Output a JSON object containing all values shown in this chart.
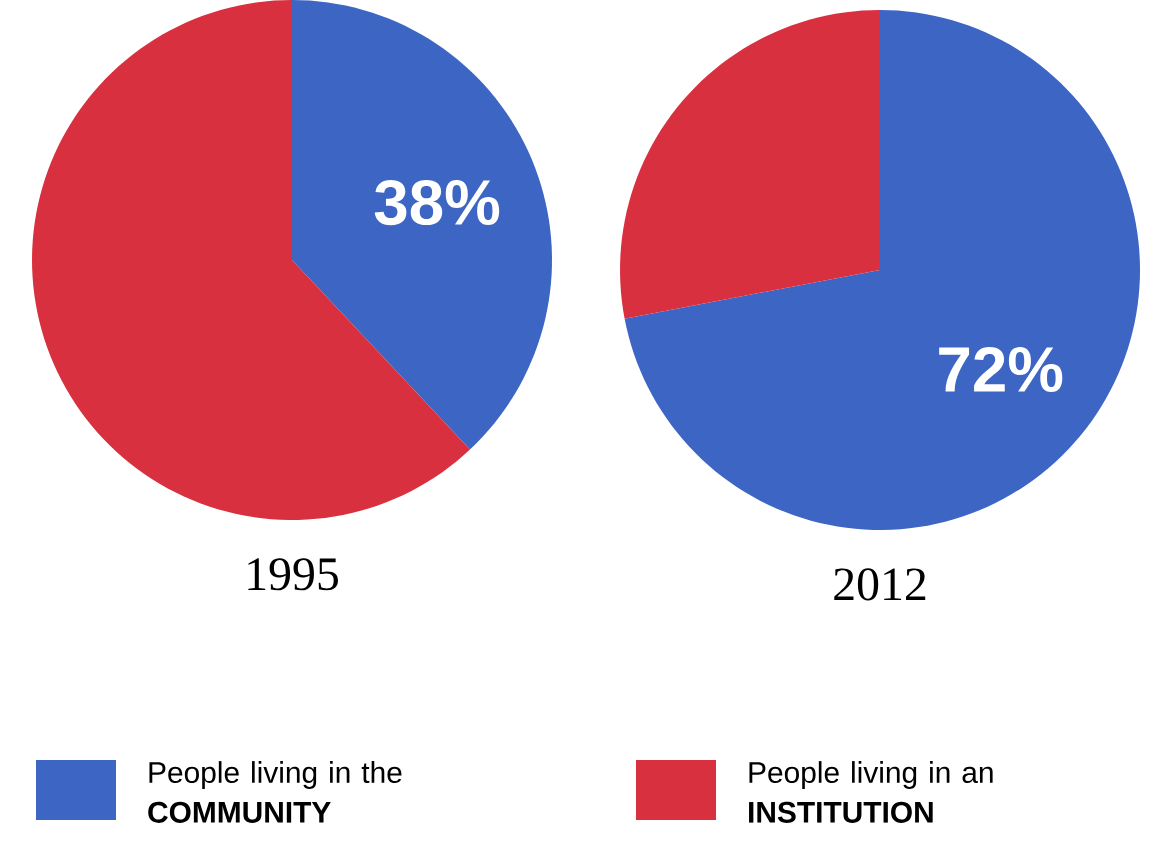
{
  "chart_data": [
    {
      "type": "pie",
      "title": "1995",
      "categories": [
        "People living in the **COMMUNITY**",
        "People living in an **INSTITUTION**"
      ],
      "values": [
        38,
        62
      ],
      "colors": [
        "#3d65c4",
        "#d8303f"
      ],
      "value_labels": [
        "38%",
        null
      ],
      "legend": "bottom"
    },
    {
      "type": "pie",
      "title": "2012",
      "categories": [
        null,
        null
      ],
      "values": [
        72,
        28
      ],
      "colors": [
        "#3d65c4",
        "#d8303f"
      ],
      "value_labels": [
        "72%",
        null
      ]
    }
  ]
}
